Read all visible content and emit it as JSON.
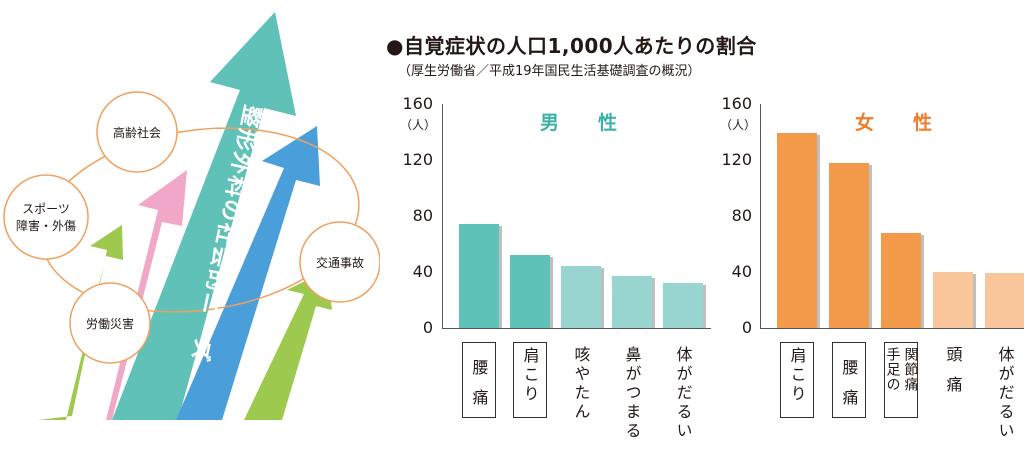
{
  "diagram": {
    "arrow_label": "整形外科の社会的ニーズ",
    "circles": {
      "aging": "高齢社会",
      "sports": [
        "スポーツ",
        "障害・外傷"
      ],
      "industrial": "労働災害",
      "traffic": "交通事故"
    },
    "colors": {
      "green": "#9dc94e",
      "pink": "#f1a7c8",
      "teal": "#5fc1b8",
      "blue": "#4a9fdb",
      "ring": "#f0a05e"
    }
  },
  "chart_header": {
    "title": "●自覚症状の人口1,000人あたりの割合",
    "source": "（厚生労働省／平成19年国民生活基礎調査の概況）"
  },
  "chart_data": [
    {
      "type": "bar",
      "title": "男　性",
      "unit": "（人）",
      "ylim": [
        0,
        160
      ],
      "yticks": [
        0,
        40,
        80,
        120,
        160
      ],
      "categories": [
        "腰痛",
        "肩こり",
        "咳やたん",
        "鼻がつまる",
        "体がだるい"
      ],
      "category_lines": [
        [
          "腰",
          "痛"
        ],
        [
          "肩こり"
        ],
        [
          "咳やたん"
        ],
        [
          "鼻がつまる"
        ],
        [
          "体がだるい"
        ]
      ],
      "boxed": [
        true,
        true,
        false,
        false,
        false
      ],
      "values": [
        74,
        52,
        44,
        37,
        32
      ],
      "colors": [
        "#5ec2b8",
        "#5ec2b8",
        "#98d5d0",
        "#98d5d0",
        "#98d5d0"
      ],
      "title_color": "#3eb1a6"
    },
    {
      "type": "bar",
      "title": "女　性",
      "unit": "（人）",
      "ylim": [
        0,
        160
      ],
      "yticks": [
        0,
        40,
        80,
        120,
        160
      ],
      "categories": [
        "肩こり",
        "腰痛",
        "手足の関節痛",
        "頭痛",
        "体がだるい"
      ],
      "category_lines": [
        [
          "肩こり"
        ],
        [
          "腰",
          "痛"
        ],
        [
          "関節痛",
          "手足の"
        ],
        [
          "頭",
          "痛"
        ],
        [
          "体がだるい"
        ]
      ],
      "boxed": [
        true,
        true,
        true,
        false,
        false
      ],
      "values": [
        139,
        118,
        68,
        40,
        39
      ],
      "colors": [
        "#f39a4a",
        "#f39a4a",
        "#f39a4a",
        "#f9c59a",
        "#f9c59a"
      ],
      "title_color": "#ef7d2a"
    }
  ]
}
